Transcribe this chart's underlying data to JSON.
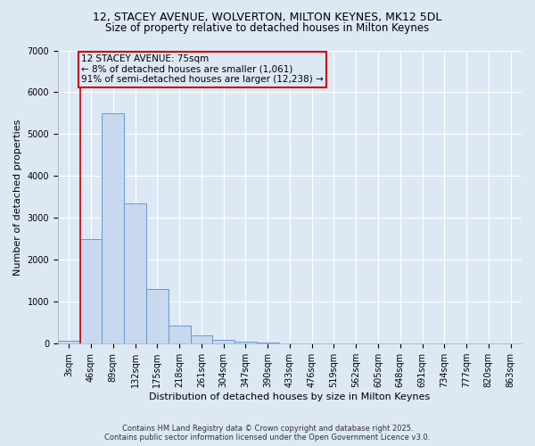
{
  "title1": "12, STACEY AVENUE, WOLVERTON, MILTON KEYNES, MK12 5DL",
  "title2": "Size of property relative to detached houses in Milton Keynes",
  "xlabel": "Distribution of detached houses by size in Milton Keynes",
  "ylabel": "Number of detached properties",
  "categories": [
    "3sqm",
    "46sqm",
    "89sqm",
    "132sqm",
    "175sqm",
    "218sqm",
    "261sqm",
    "304sqm",
    "347sqm",
    "390sqm",
    "433sqm",
    "476sqm",
    "519sqm",
    "562sqm",
    "605sqm",
    "648sqm",
    "691sqm",
    "734sqm",
    "777sqm",
    "820sqm",
    "863sqm"
  ],
  "values": [
    75,
    2500,
    5500,
    3350,
    1300,
    430,
    200,
    100,
    50,
    20,
    10,
    5,
    2,
    1,
    0,
    0,
    0,
    0,
    0,
    0,
    0
  ],
  "bar_color": "#c8d8ee",
  "bar_edgecolor": "#6699cc",
  "background_color": "#dde8f5",
  "vline_color": "#cc0000",
  "vline_pos": 0.5,
  "annotation_text": "12 STACEY AVENUE: 75sqm\n← 8% of detached houses are smaller (1,061)\n91% of semi-detached houses are larger (12,238) →",
  "annotation_box_color": "#cc0000",
  "ylim": [
    0,
    7000
  ],
  "yticks": [
    0,
    1000,
    2000,
    3000,
    4000,
    5000,
    6000,
    7000
  ],
  "footer_line1": "Contains HM Land Registry data © Crown copyright and database right 2025.",
  "footer_line2": "Contains public sector information licensed under the Open Government Licence v3.0.",
  "title_fontsize": 9,
  "subtitle_fontsize": 8.5,
  "axis_fontsize": 8,
  "tick_fontsize": 7,
  "annotation_fontsize": 7.5,
  "footer_fontsize": 6
}
